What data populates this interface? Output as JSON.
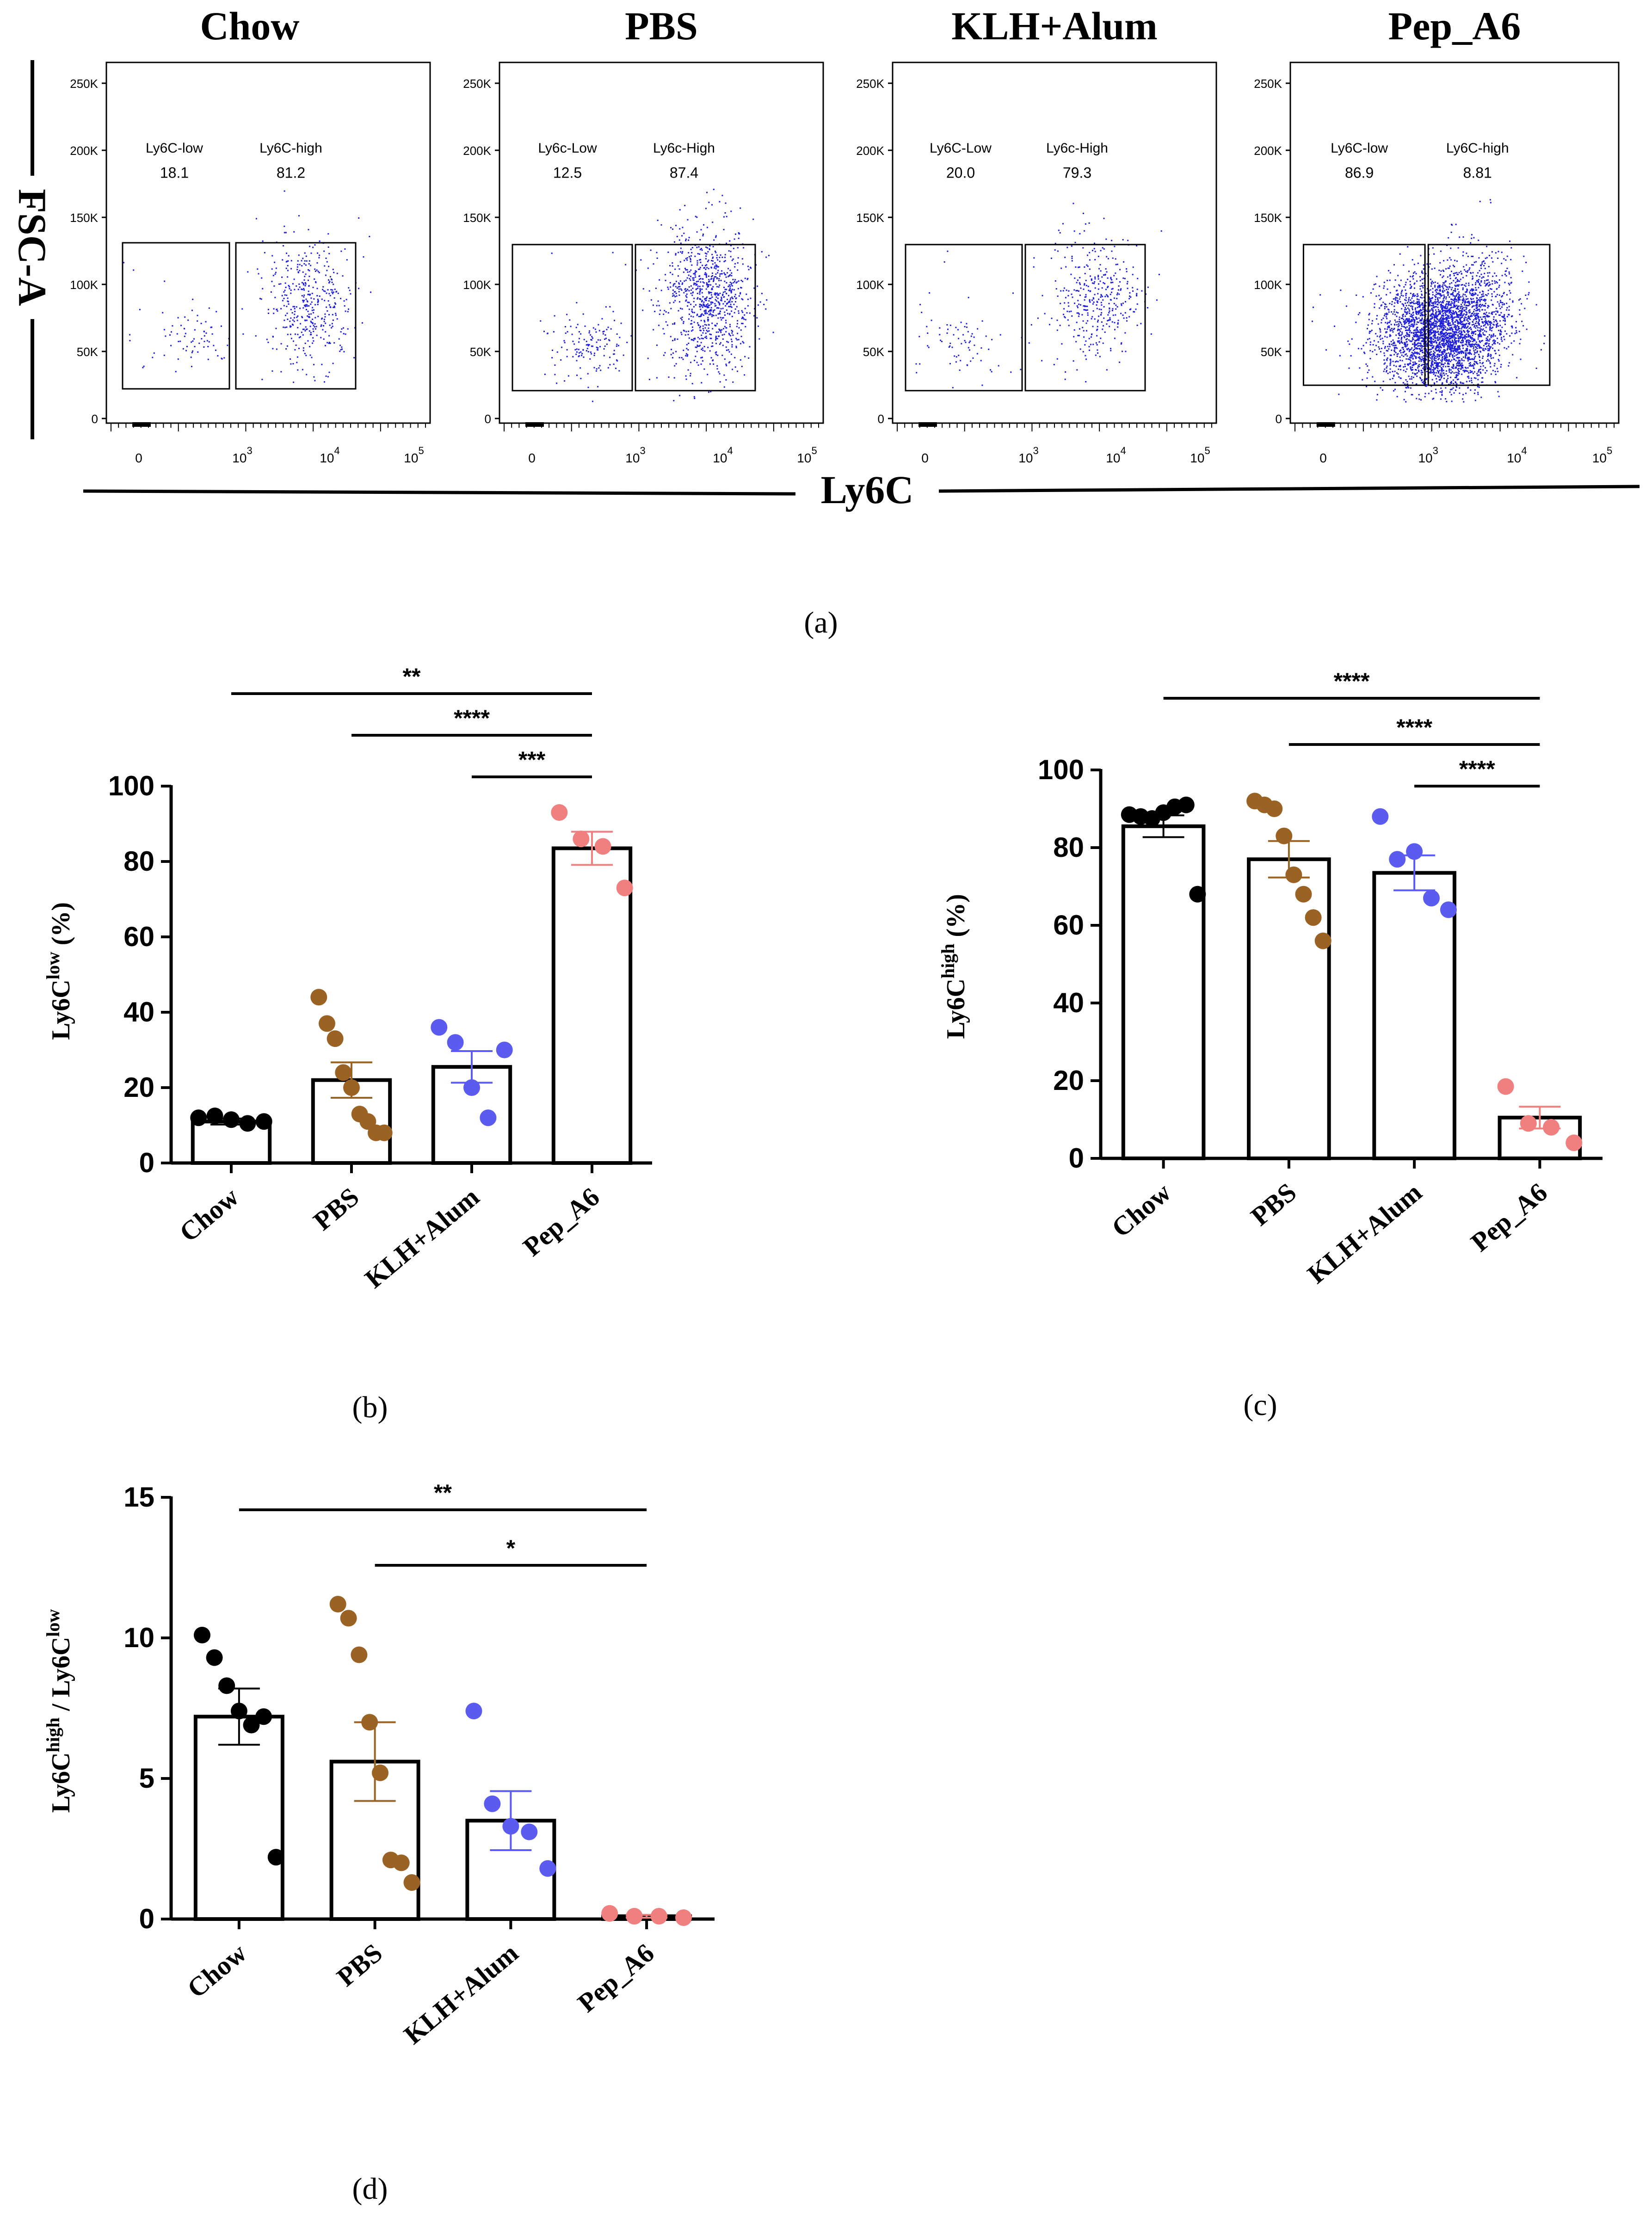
{
  "panel_a": {
    "label": "(a)",
    "y_axis_label": "FSC-A",
    "x_axis_label": "Ly6C",
    "y_ticks": [
      "250K",
      "200K",
      "150K",
      "100K",
      "50K",
      "0"
    ],
    "x_ticks": [
      {
        "base": "0",
        "exp": ""
      },
      {
        "base": "10",
        "exp": "3"
      },
      {
        "base": "10",
        "exp": "4"
      },
      {
        "base": "10",
        "exp": "5"
      }
    ],
    "plots": [
      {
        "title": "Chow",
        "low_label": "Ly6C-low",
        "low_value": "18.1",
        "high_label": "Ly6C-high",
        "high_value": "81.2"
      },
      {
        "title": "PBS",
        "low_label": "Ly6c-Low",
        "low_value": "12.5",
        "high_label": "Ly6c-High",
        "high_value": "87.4"
      },
      {
        "title": "KLH+Alum",
        "low_label": "Ly6C-Low",
        "low_value": "20.0",
        "high_label": "Ly6c-High",
        "high_value": "79.3"
      },
      {
        "title": "Pep_A6",
        "low_label": "Ly6C-low",
        "low_value": "86.9",
        "high_label": "Ly6C-high",
        "high_value": "8.81"
      }
    ]
  },
  "colors": {
    "Chow": "#000000",
    "PBS": "#9a6324",
    "KLH+Alum": "#5b5bf0",
    "Pep_A6": "#f08080",
    "scatter": "#1f1fdd"
  },
  "chart_data": [
    {
      "id": "b",
      "type": "bar",
      "panel_label": "(b)",
      "ylabel_main": "Ly6C",
      "ylabel_sup": "low",
      "ylabel_tail": " (%)",
      "categories": [
        "Chow",
        "PBS",
        "KLH+Alum",
        "Pep_A6"
      ],
      "values": [
        11,
        22,
        25.5,
        83.5
      ],
      "sem": [
        0.8,
        4.7,
        4.2,
        4.4
      ],
      "points": [
        [
          12,
          12.5,
          11.5,
          10.5,
          11
        ],
        [
          44,
          37,
          33,
          24,
          20,
          13,
          11,
          8,
          8
        ],
        [
          36,
          32,
          20,
          12,
          30
        ],
        [
          93,
          86,
          84,
          73
        ]
      ],
      "ylim": [
        0,
        100
      ],
      "yticks": [
        0,
        20,
        40,
        60,
        80,
        100
      ],
      "significance": [
        {
          "from": 0,
          "to": 3,
          "label": "**"
        },
        {
          "from": 1,
          "to": 3,
          "label": "****"
        },
        {
          "from": 2,
          "to": 3,
          "label": "***"
        }
      ]
    },
    {
      "id": "c",
      "type": "bar",
      "panel_label": "(c)",
      "ylabel_main": "Ly6C",
      "ylabel_sup": "high",
      "ylabel_tail": " (%)",
      "categories": [
        "Chow",
        "PBS",
        "KLH+Alum",
        "Pep_A6"
      ],
      "values": [
        85.5,
        77,
        73.5,
        10.5
      ],
      "sem": [
        2.8,
        4.7,
        4.5,
        2.8
      ],
      "points": [
        [
          88.5,
          88,
          87.5,
          89,
          90.5,
          91,
          68
        ],
        [
          92,
          91,
          90,
          83,
          73,
          68,
          62,
          56
        ],
        [
          88,
          77,
          79,
          67,
          64
        ],
        [
          18.5,
          9,
          8,
          4
        ]
      ],
      "ylim": [
        0,
        100
      ],
      "yticks": [
        0,
        20,
        40,
        60,
        80,
        100
      ],
      "significance": [
        {
          "from": 0,
          "to": 3,
          "label": "****"
        },
        {
          "from": 1,
          "to": 3,
          "label": "****"
        },
        {
          "from": 2,
          "to": 3,
          "label": "****"
        }
      ]
    },
    {
      "id": "d",
      "type": "bar",
      "panel_label": "(d)",
      "ylabel_main": "Ly6C",
      "ylabel_sup": "high",
      "ylabel_mid": " / Ly6C",
      "ylabel_sup2": "low",
      "categories": [
        "Chow",
        "PBS",
        "KLH+Alum",
        "Pep_A6"
      ],
      "values": [
        7.2,
        5.6,
        3.5,
        0.1
      ],
      "sem": [
        1.0,
        1.4,
        1.05,
        0.05
      ],
      "points": [
        [
          10.1,
          9.3,
          8.3,
          7.4,
          6.9,
          7.2,
          2.2
        ],
        [
          11.2,
          10.7,
          9.4,
          7.0,
          5.2,
          2.1,
          2.0,
          1.3
        ],
        [
          7.4,
          4.1,
          3.3,
          3.1,
          1.8
        ],
        [
          0.2,
          0.1,
          0.1,
          0.05
        ]
      ],
      "ylim": [
        0,
        15
      ],
      "yticks": [
        0,
        5,
        10,
        15
      ],
      "significance": [
        {
          "from": 0,
          "to": 3,
          "label": "**"
        },
        {
          "from": 1,
          "to": 3,
          "label": "*"
        }
      ]
    }
  ]
}
